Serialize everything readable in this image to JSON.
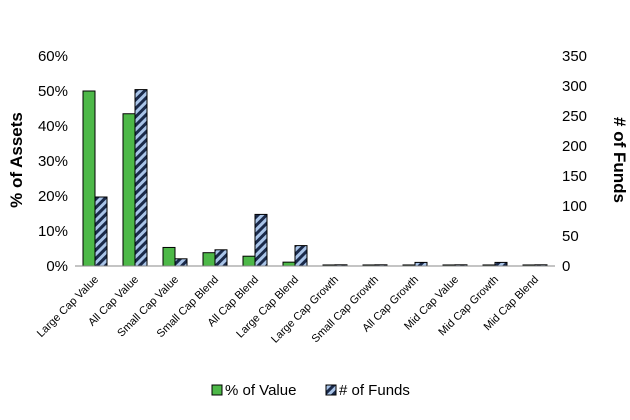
{
  "chart_data": {
    "type": "bar",
    "categories": [
      "Large Cap Value",
      "All Cap Value",
      "Small Cap Value",
      "Small Cap Blend",
      "All Cap Blend",
      "Large Cap Blend",
      "Large Cap Growth",
      "Small Cap Growth",
      "All Cap Growth",
      "Mid Cap Value",
      "Mid Cap Growth",
      "Mid Cap Blend"
    ],
    "series": [
      {
        "name": "% of Value",
        "axis": "left",
        "color": "#4db848",
        "values": [
          0.5,
          0.435,
          0.053,
          0.038,
          0.028,
          0.011,
          0.003,
          0.003,
          0.003,
          0.003,
          0.003,
          0.003
        ]
      },
      {
        "name": "# of Funds",
        "axis": "right",
        "color": "#1a2a4a",
        "stripe_color": "#a9c4e8",
        "values": [
          115,
          294,
          12,
          27,
          86,
          34,
          2,
          2,
          6,
          2,
          6,
          2
        ]
      }
    ],
    "ylabel": "% of Assets",
    "y2label": "# of Funds",
    "ylim": [
      0,
      0.6
    ],
    "y2lim": [
      0,
      350
    ],
    "yticks": [
      "0%",
      "10%",
      "20%",
      "30%",
      "40%",
      "50%",
      "60%"
    ],
    "y2ticks": [
      "0",
      "50",
      "100",
      "150",
      "200",
      "250",
      "300",
      "350"
    ],
    "grid": false,
    "legend_position": "bottom"
  }
}
